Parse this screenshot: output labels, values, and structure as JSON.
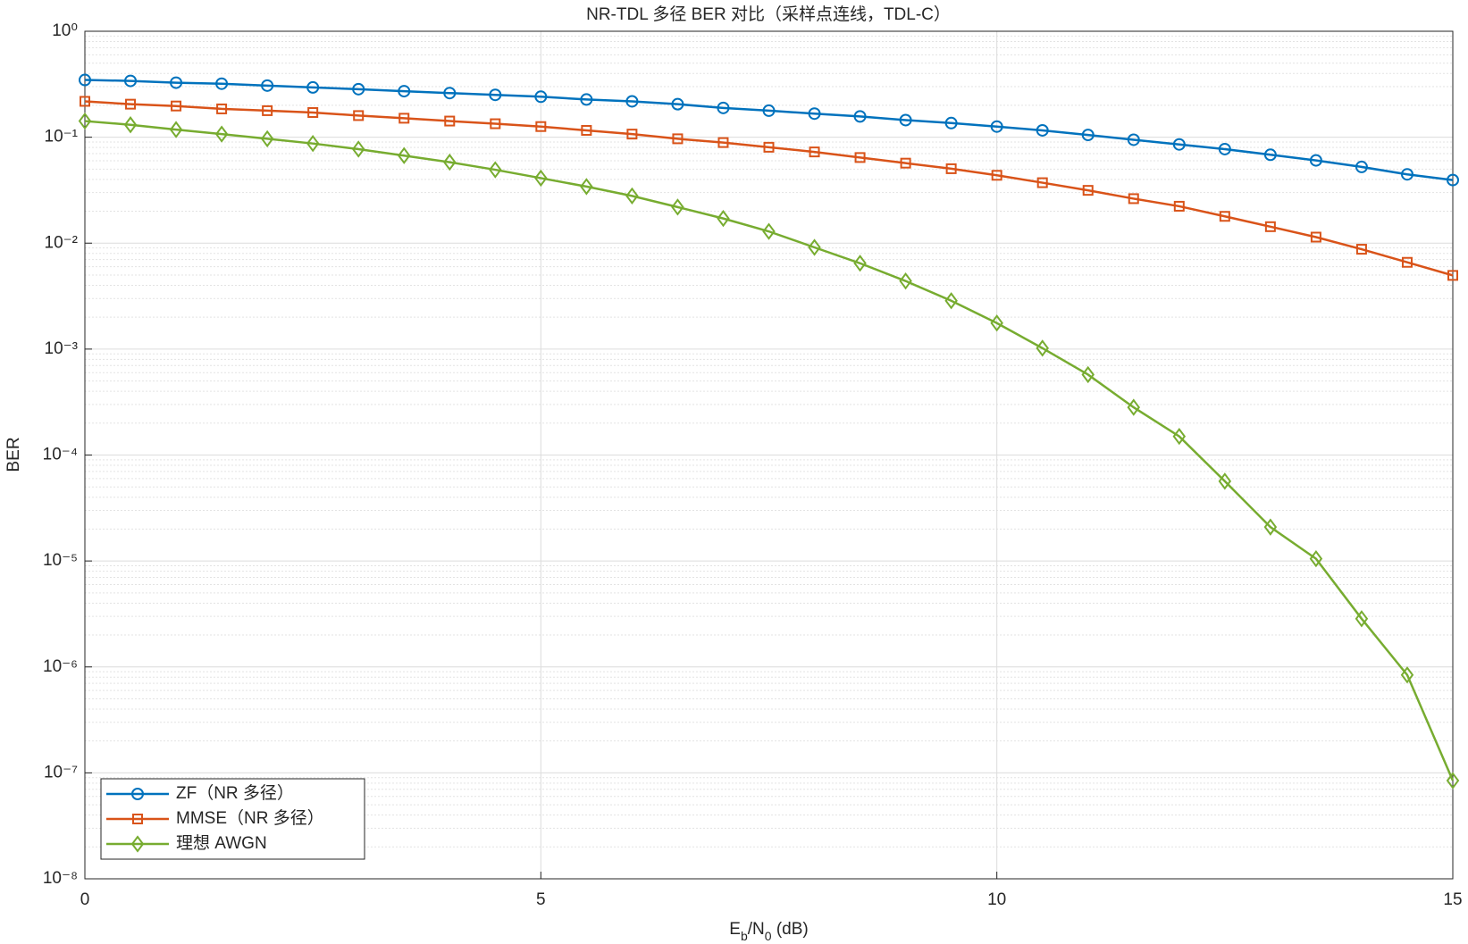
{
  "chart_data": {
    "type": "line",
    "title": "NR-TDL 多径 BER 对比（采样点连线，TDL-C）",
    "xlabel": "Eb/N0 (dB)",
    "ylabel": "BER",
    "yscale": "log",
    "grid": true,
    "minor_grid": true,
    "legend": "lower left",
    "xlim": [
      0,
      15
    ],
    "xticks": [
      0,
      5,
      10,
      15
    ],
    "ylim": [
      1e-08,
      1
    ],
    "yticks": [
      {
        "value": 1e-08,
        "label": "10⁻⁸"
      },
      {
        "value": 1e-07,
        "label": "10⁻⁷"
      },
      {
        "value": 1e-06,
        "label": "10⁻⁶"
      },
      {
        "value": 1e-05,
        "label": "10⁻⁵"
      },
      {
        "value": 0.0001,
        "label": "10⁻⁴"
      },
      {
        "value": 0.001,
        "label": "10⁻³"
      },
      {
        "value": 0.01,
        "label": "10⁻²"
      },
      {
        "value": 0.1,
        "label": "10⁻¹"
      },
      {
        "value": 1,
        "label": "10⁰"
      }
    ],
    "x": [
      0,
      0.5,
      1,
      1.5,
      2,
      2.5,
      3,
      3.5,
      4,
      4.5,
      5,
      5.5,
      6,
      6.5,
      7,
      7.5,
      8,
      8.5,
      9,
      9.5,
      10,
      10.5,
      11,
      11.5,
      12,
      12.5,
      13,
      13.5,
      14,
      14.5,
      15
    ],
    "series": [
      {
        "name": "ZF（NR 多径）",
        "color": "#0072BD",
        "marker": "circle",
        "values": [
          0.347,
          0.34,
          0.327,
          0.32,
          0.307,
          0.295,
          0.284,
          0.272,
          0.261,
          0.251,
          0.241,
          0.227,
          0.218,
          0.205,
          0.189,
          0.178,
          0.167,
          0.157,
          0.145,
          0.136,
          0.126,
          0.116,
          0.105,
          0.0946,
          0.0855,
          0.0772,
          0.0683,
          0.0604,
          0.0524,
          0.0446,
          0.0394
        ]
      },
      {
        "name": "MMSE（NR 多径）",
        "color": "#D95319",
        "marker": "square",
        "values": [
          0.218,
          0.205,
          0.197,
          0.185,
          0.178,
          0.171,
          0.16,
          0.151,
          0.142,
          0.134,
          0.126,
          0.116,
          0.107,
          0.0966,
          0.089,
          0.0804,
          0.0726,
          0.0643,
          0.0569,
          0.0504,
          0.0437,
          0.0372,
          0.0315,
          0.0263,
          0.0223,
          0.0179,
          0.0143,
          0.0114,
          0.00876,
          0.00659,
          0.00496
        ]
      },
      {
        "name": "理想 AWGN",
        "color": "#77AC30",
        "marker": "diamond",
        "values": [
          0.142,
          0.131,
          0.118,
          0.107,
          0.0966,
          0.0872,
          0.0772,
          0.067,
          0.0581,
          0.0493,
          0.0411,
          0.0342,
          0.0279,
          0.0219,
          0.0171,
          0.0129,
          0.00912,
          0.00646,
          0.00439,
          0.00286,
          0.00176,
          0.00102,
          0.000574,
          0.000282,
          0.00015,
          5.66e-05,
          2.09e-05,
          1.05e-05,
          2.85e-06,
          8.4e-07,
          8.45e-08
        ]
      }
    ]
  }
}
